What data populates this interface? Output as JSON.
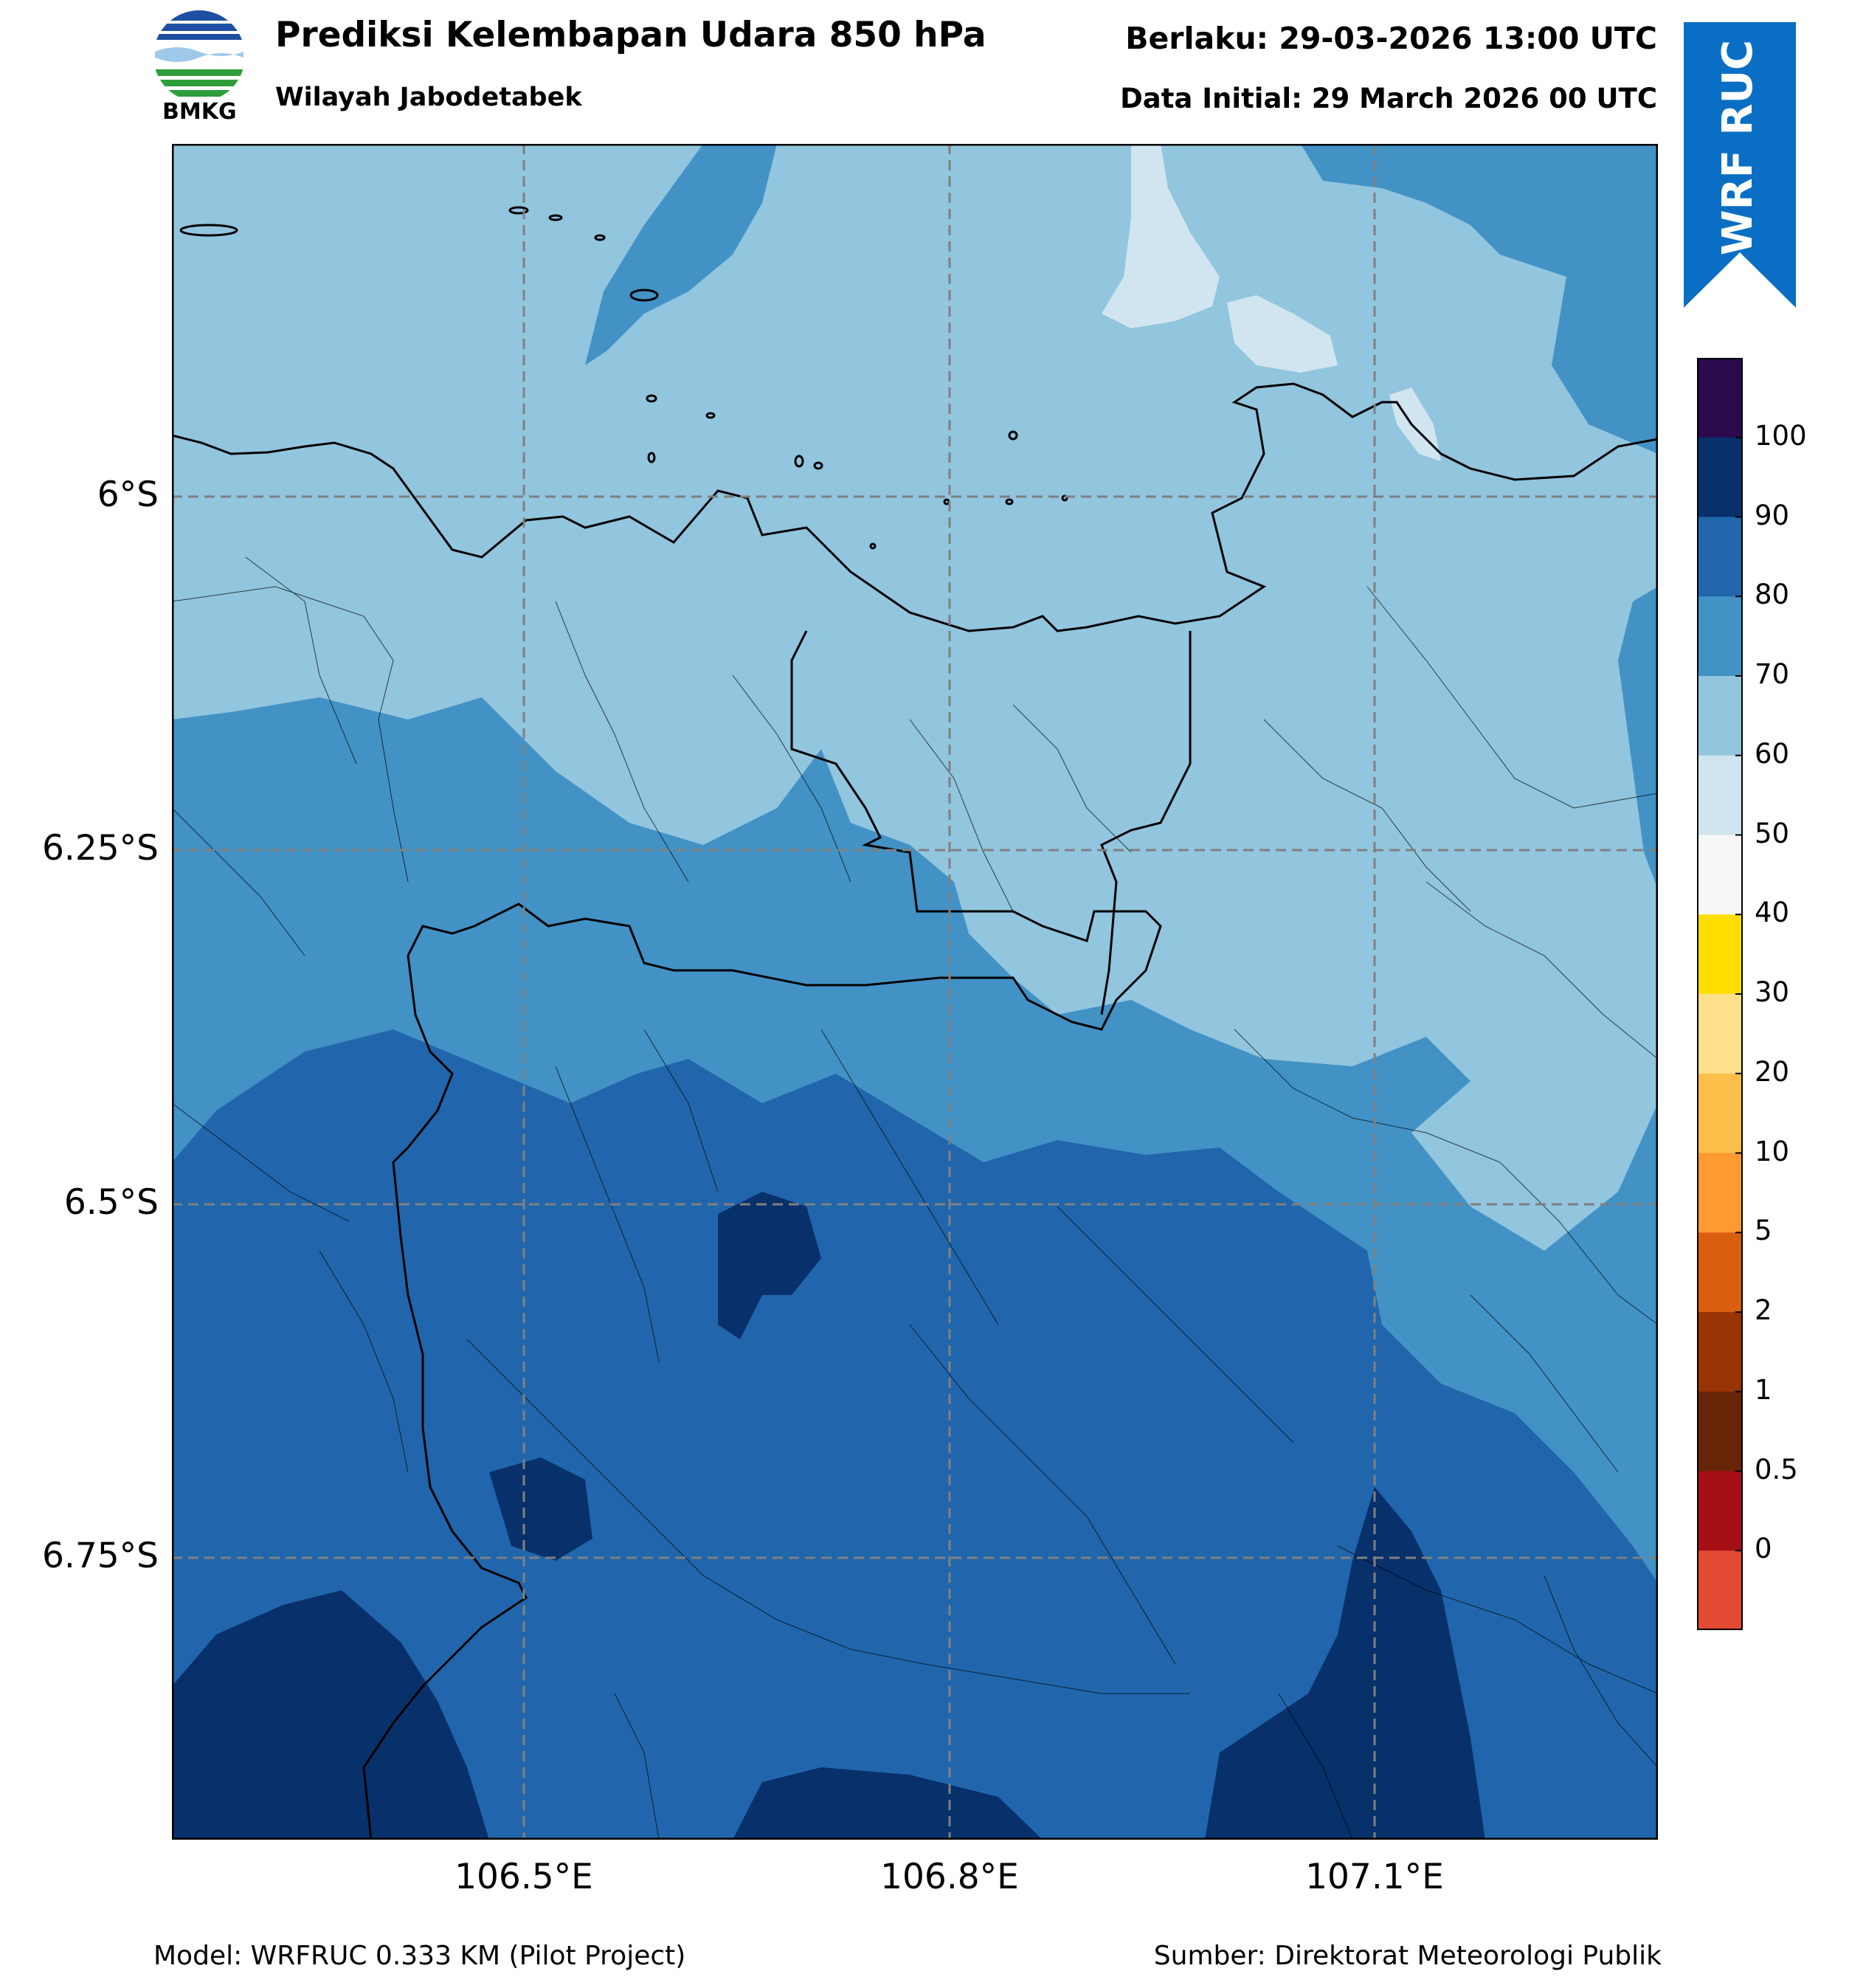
{
  "header": {
    "logo_text": "BMKG",
    "title": "Prediksi Kelembapan Udara 850 hPa",
    "subtitle": "Wilayah Jabodetabek",
    "valid_time": "Berlaku: 29-03-2026 13:00 UTC",
    "init_time": "Data Initial: 29 March 2026 00 UTC"
  },
  "badge": {
    "text": "WRF RUC",
    "color": "#0a6fc4"
  },
  "map": {
    "x_ticks": [
      "106.5°E",
      "106.8°E",
      "107.1°E"
    ],
    "y_ticks": [
      "6°S",
      "6.25°S",
      "6.5°S",
      "6.75°S"
    ],
    "grid": "dashed"
  },
  "colorbar": {
    "labels": [
      "100",
      "90",
      "80",
      "70",
      "60",
      "50",
      "40",
      "30",
      "20",
      "10",
      "5",
      "2",
      "1",
      "0.5",
      "0"
    ],
    "colors_top_to_bottom": [
      "#2b0a4d",
      "#08306b",
      "#2166ac",
      "#4292c6",
      "#92c5de",
      "#d1e5f0",
      "#f7f7f7",
      "#ffdd00",
      "#fee08b",
      "#fdbf4a",
      "#fd9a30",
      "#d95f0e",
      "#993404",
      "#662506",
      "#a50f15",
      "#e34a33"
    ]
  },
  "footer": {
    "model": "Model: WRFRUC 0.333 KM (Pilot Project)",
    "source": "Sumber: Direktorat Meteorologi Publik"
  }
}
